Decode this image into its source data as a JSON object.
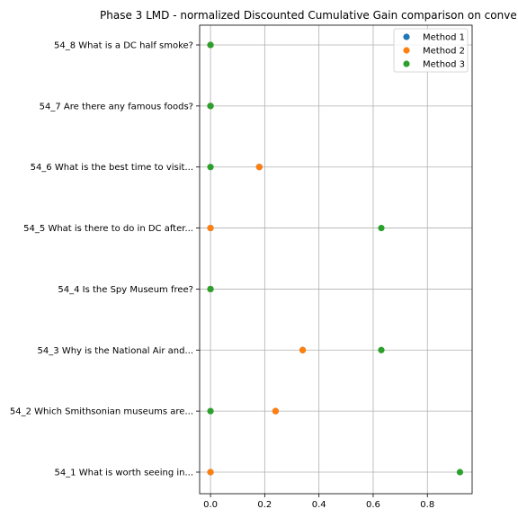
{
  "chart_data": {
    "type": "scatter",
    "title": "Phase 3 LMD - normalized Discounted Cumulative Gain comparison on conve",
    "xlabel": "",
    "ylabel": "",
    "xlim": [
      -0.04,
      0.965
    ],
    "xticks": [
      0.0,
      0.2,
      0.4,
      0.6,
      0.8
    ],
    "xtick_labels": [
      "0.0",
      "0.2",
      "0.4",
      "0.6",
      "0.8"
    ],
    "categories": [
      "54_1 What is worth seeing in...",
      "54_2 Which Smithsonian museums are...",
      "54_3 Why is the National Air and...",
      "54_4 Is the Spy Museum free?",
      "54_5 What is there to do in DC after...",
      "54_6 What is the best time to visit...",
      "54_7 Are there any famous foods?",
      "54_8 What is a DC half smoke?"
    ],
    "grid": true,
    "legend_position": "top-right",
    "series": [
      {
        "name": "Method 1",
        "color": "#1f77b4",
        "values": [
          0.0,
          0.24,
          0.34,
          0.0,
          0.0,
          0.18,
          0.0,
          0.0
        ]
      },
      {
        "name": "Method 2",
        "color": "#ff7f0e",
        "values": [
          0.0,
          0.24,
          0.34,
          0.0,
          0.0,
          0.18,
          0.0,
          0.0
        ]
      },
      {
        "name": "Method 3",
        "color": "#2ca02c",
        "values": [
          0.92,
          0.0,
          0.63,
          0.0,
          0.63,
          0.0,
          0.0,
          0.0
        ]
      }
    ]
  }
}
